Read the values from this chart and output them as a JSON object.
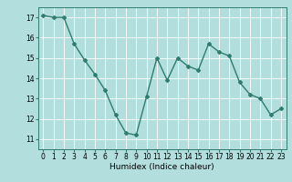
{
  "x": [
    0,
    1,
    2,
    3,
    4,
    5,
    6,
    7,
    8,
    9,
    10,
    11,
    12,
    13,
    14,
    15,
    16,
    17,
    18,
    19,
    20,
    21,
    22,
    23
  ],
  "y": [
    17.1,
    17.0,
    17.0,
    15.7,
    14.9,
    14.2,
    13.4,
    12.2,
    11.3,
    11.2,
    13.1,
    15.0,
    13.9,
    15.0,
    14.6,
    14.4,
    15.7,
    15.3,
    15.1,
    13.8,
    13.2,
    13.0,
    12.2,
    12.5
  ],
  "line_color": "#2e7d6e",
  "bg_color": "#b2dede",
  "grid_color": "#ffffff",
  "xlabel": "Humidex (Indice chaleur)",
  "ylim": [
    10.5,
    17.5
  ],
  "xlim": [
    -0.5,
    23.5
  ],
  "yticks": [
    11,
    12,
    13,
    14,
    15,
    16,
    17
  ],
  "xticks": [
    0,
    1,
    2,
    3,
    4,
    5,
    6,
    7,
    8,
    9,
    10,
    11,
    12,
    13,
    14,
    15,
    16,
    17,
    18,
    19,
    20,
    21,
    22,
    23
  ],
  "marker": "D",
  "markersize": 2.0,
  "linewidth": 1.0,
  "tick_fontsize": 5.5,
  "xlabel_fontsize": 6.5,
  "spine_color": "#2e7d6e"
}
